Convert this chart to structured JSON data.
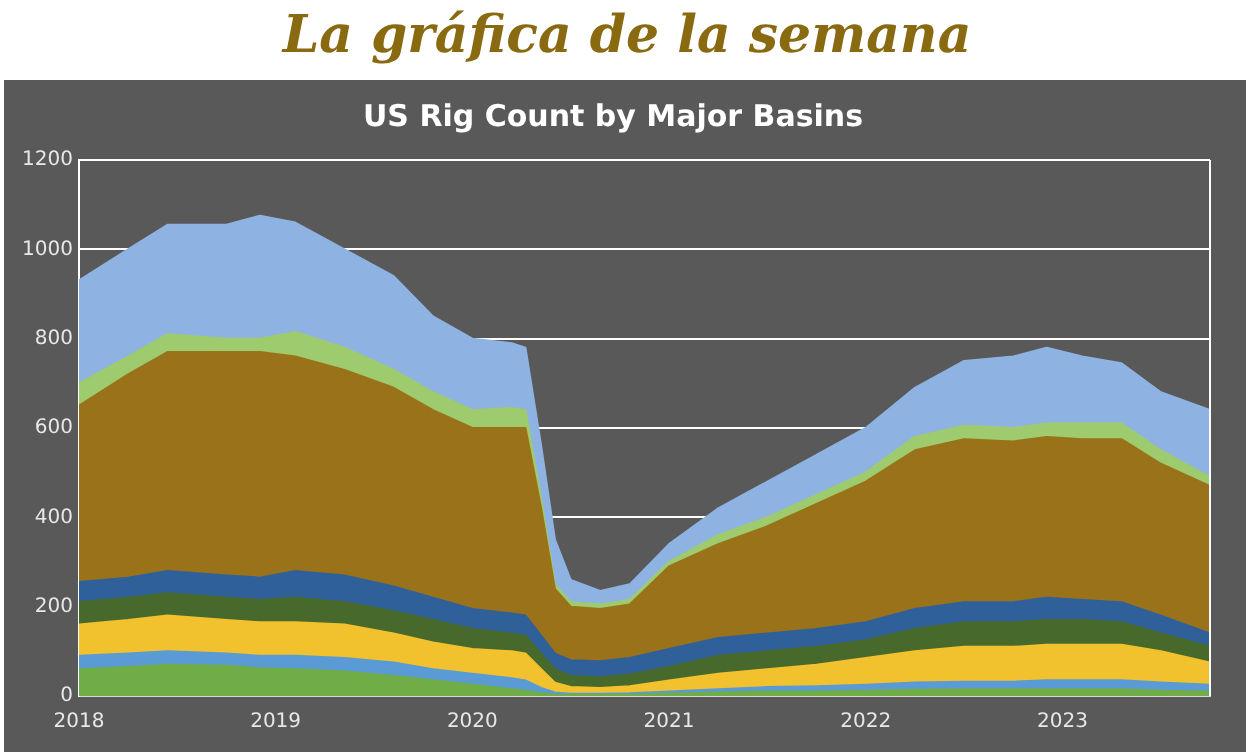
{
  "chart_data": {
    "type": "area",
    "title": "La gráfica de la semana",
    "subtitle": "US Rig Count by Major Basins",
    "stacked": true,
    "grid": "y",
    "marker": "none",
    "x": [
      2018.0,
      2018.25,
      2018.45,
      2018.75,
      2018.92,
      2019.1,
      2019.35,
      2019.6,
      2019.8,
      2020.0,
      2020.2,
      2020.27,
      2020.35,
      2020.42,
      2020.5,
      2020.65,
      2020.8,
      2021.0,
      2021.25,
      2021.5,
      2021.75,
      2022.0,
      2022.25,
      2022.5,
      2022.75,
      2022.92,
      2023.1,
      2023.3,
      2023.5,
      2023.75
    ],
    "xlim": [
      2018,
      2023.75
    ],
    "xticks": [
      2018,
      2019,
      2020,
      2021,
      2022,
      2023
    ],
    "ylim": [
      0,
      1200
    ],
    "yticks": [
      0,
      200,
      400,
      600,
      800,
      1000,
      1200
    ],
    "series": [
      {
        "color": "#70ad47",
        "values": [
          60,
          65,
          70,
          68,
          62,
          60,
          55,
          45,
          35,
          25,
          15,
          12,
          6,
          3,
          2,
          2,
          3,
          5,
          8,
          10,
          10,
          12,
          14,
          15,
          15,
          15,
          15,
          15,
          12,
          10
        ]
      },
      {
        "color": "#5b9bd5",
        "values": [
          30,
          30,
          30,
          27,
          28,
          30,
          30,
          30,
          25,
          25,
          25,
          23,
          12,
          5,
          3,
          3,
          3,
          5,
          7,
          10,
          12,
          13,
          16,
          17,
          17,
          20,
          20,
          20,
          18,
          15
        ]
      },
      {
        "color": "#f2c12e",
        "values": [
          70,
          75,
          80,
          75,
          75,
          75,
          75,
          65,
          60,
          55,
          60,
          60,
          42,
          22,
          15,
          13,
          16,
          25,
          35,
          40,
          48,
          60,
          70,
          78,
          78,
          80,
          80,
          80,
          70,
          50
        ]
      },
      {
        "color": "#47692c",
        "values": [
          50,
          50,
          50,
          50,
          50,
          55,
          50,
          50,
          50,
          45,
          40,
          40,
          35,
          30,
          25,
          24,
          26,
          30,
          40,
          40,
          40,
          40,
          50,
          55,
          55,
          55,
          55,
          50,
          40,
          35
        ]
      },
      {
        "color": "#30609a",
        "values": [
          45,
          45,
          50,
          50,
          50,
          60,
          60,
          55,
          50,
          45,
          45,
          45,
          40,
          35,
          35,
          36,
          37,
          40,
          40,
          40,
          40,
          40,
          45,
          45,
          45,
          50,
          45,
          45,
          40,
          30
        ]
      },
      {
        "color": "#9a7219",
        "values": [
          395,
          455,
          490,
          500,
          505,
          480,
          460,
          445,
          420,
          405,
          415,
          420,
          285,
          145,
          120,
          117,
          120,
          185,
          210,
          240,
          280,
          315,
          355,
          365,
          360,
          360,
          360,
          365,
          340,
          330
        ]
      },
      {
        "color": "#9dcb6e",
        "values": [
          50,
          40,
          40,
          30,
          30,
          55,
          50,
          40,
          40,
          40,
          45,
          40,
          20,
          10,
          10,
          10,
          10,
          10,
          20,
          20,
          20,
          20,
          30,
          30,
          30,
          30,
          35,
          35,
          30,
          20
        ]
      },
      {
        "color": "#8eb3e2",
        "values": [
          230,
          240,
          245,
          255,
          275,
          245,
          220,
          210,
          170,
          160,
          145,
          140,
          120,
          100,
          50,
          30,
          35,
          40,
          60,
          80,
          90,
          100,
          110,
          145,
          160,
          170,
          150,
          135,
          130,
          150
        ]
      }
    ]
  }
}
